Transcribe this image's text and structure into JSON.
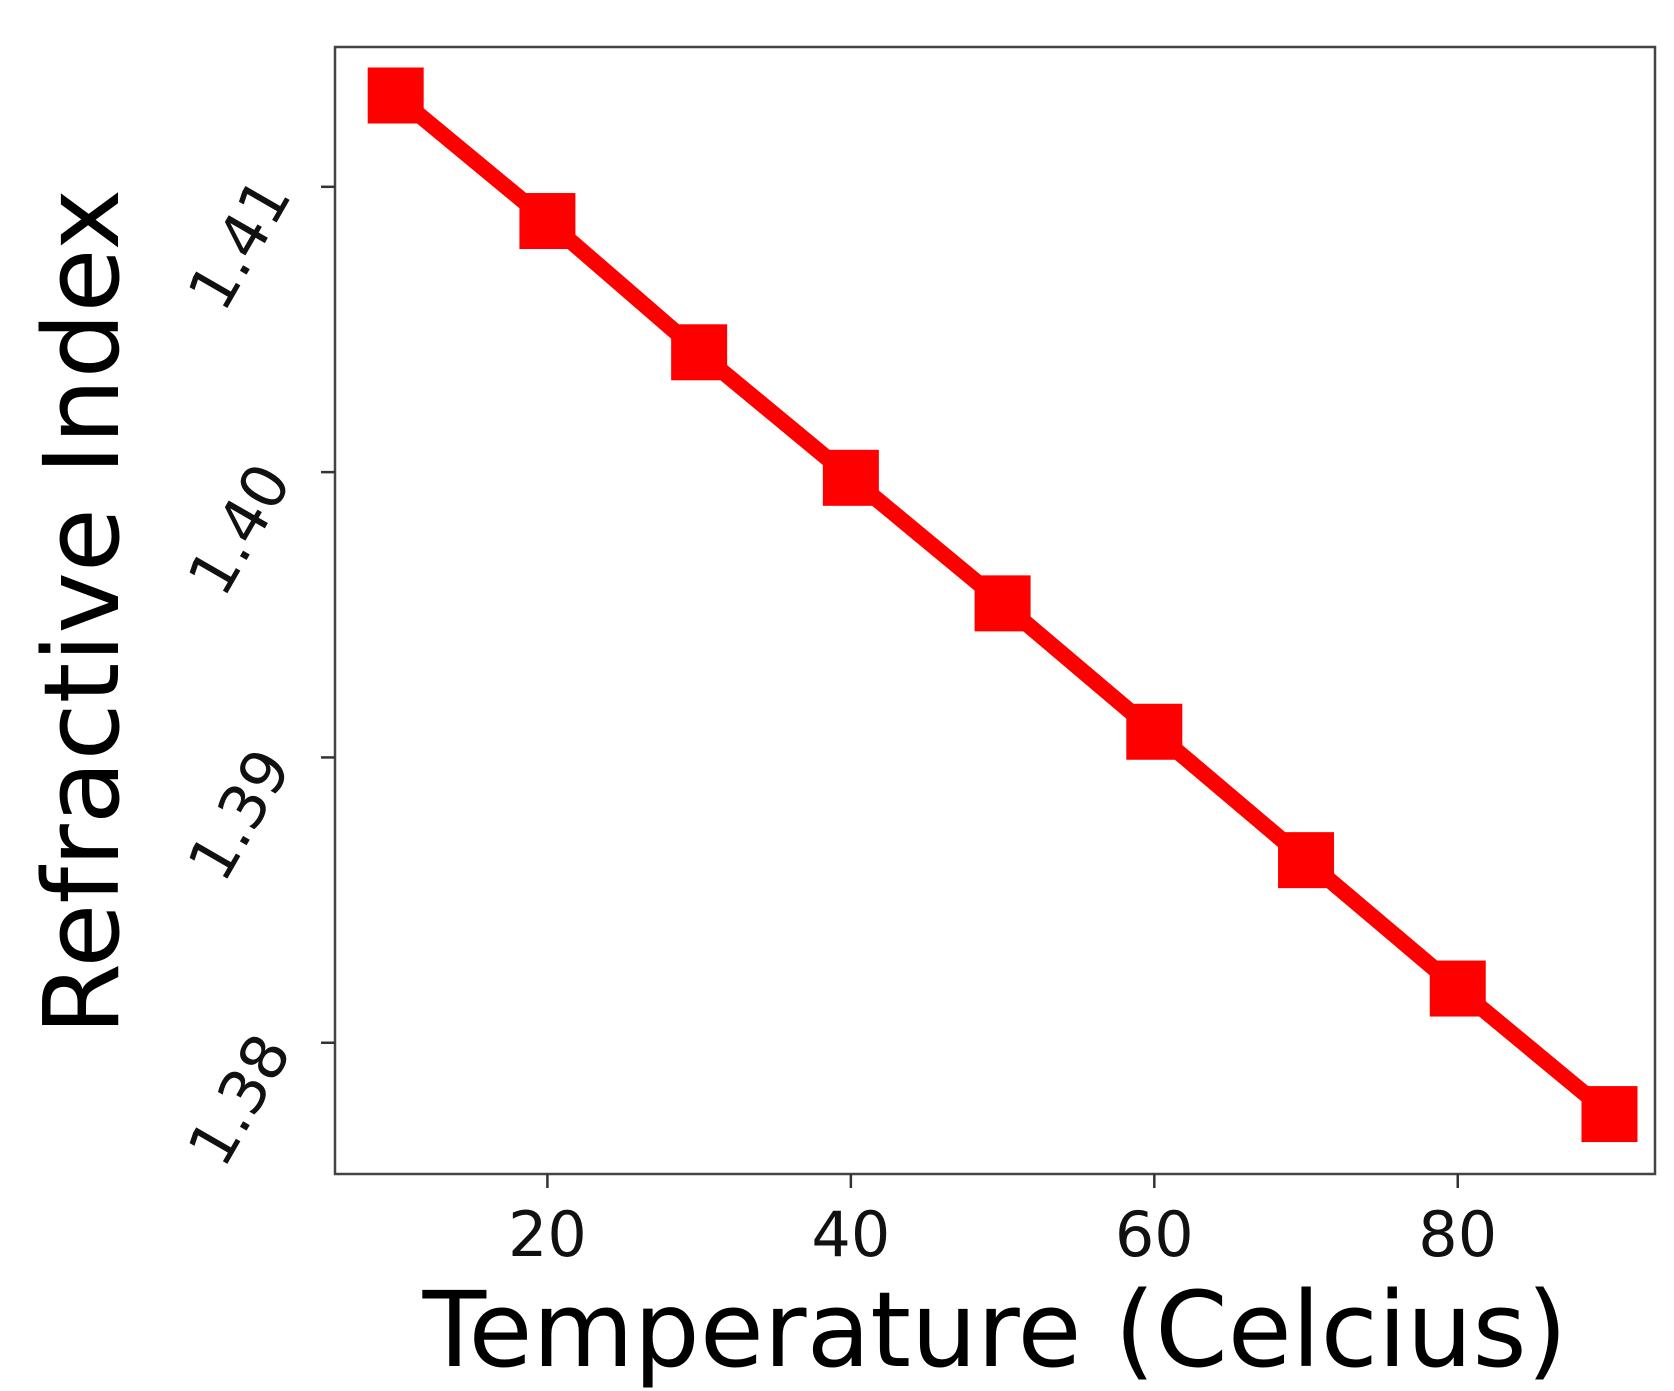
{
  "chart_data": {
    "type": "line",
    "xlabel": "Temperature (Celcius)",
    "ylabel": "Refractive Index",
    "x": [
      10,
      20,
      30,
      40,
      50,
      60,
      70,
      80,
      90
    ],
    "series": [
      {
        "values": [
          1.4132,
          1.4088,
          1.4042,
          1.3998,
          1.3954,
          1.3909,
          1.3864,
          1.3819,
          1.3775
        ],
        "color": "#ff0000",
        "marker": "square"
      }
    ],
    "xticks": [
      20,
      40,
      60,
      80
    ],
    "xtick_labels": [
      "20",
      "40",
      "60",
      "80"
    ],
    "yticks": [
      1.38,
      1.39,
      1.4,
      1.41
    ],
    "ytick_labels": [
      "1.38",
      "1.39",
      "1.40",
      "1.41"
    ],
    "xlim": [
      6,
      93
    ],
    "ylim": [
      1.3754,
      1.4149
    ],
    "ytick_label_rotation": "diagonal",
    "grid": false,
    "legend": "none"
  }
}
